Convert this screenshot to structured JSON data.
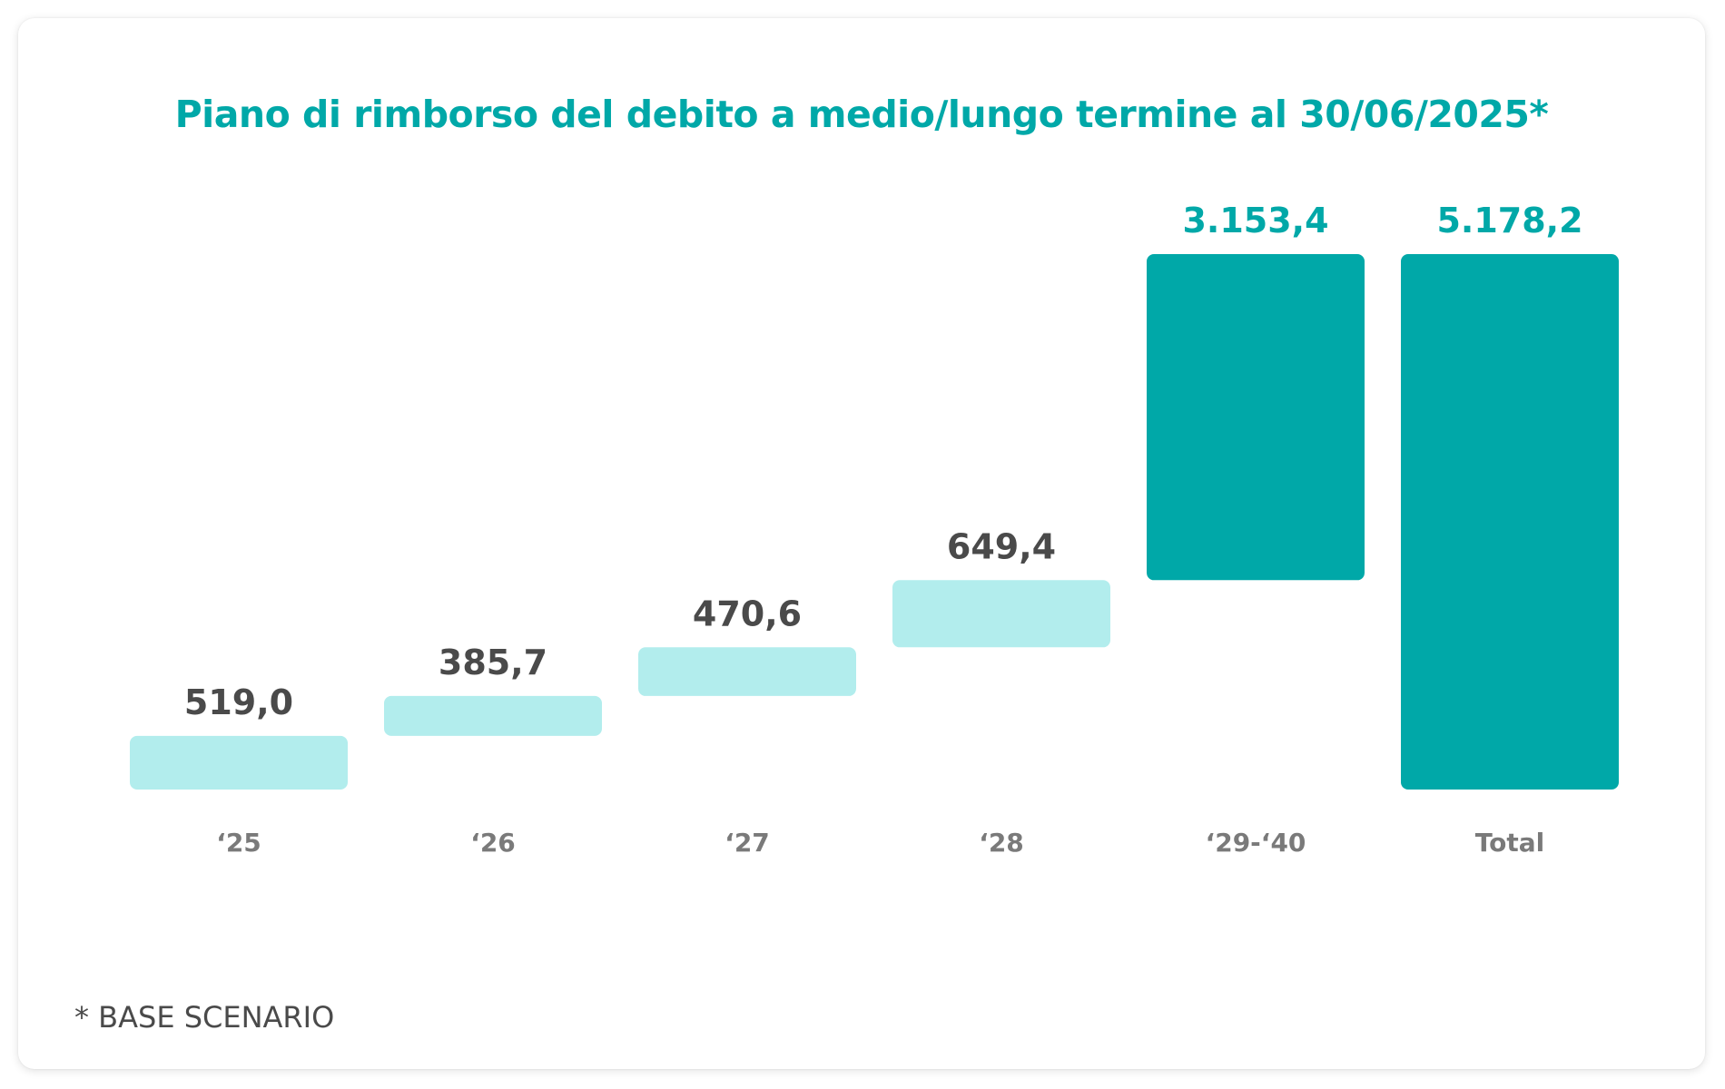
{
  "colors": {
    "increment_bar": "#b2eded",
    "total_bar": "#00a8a8",
    "increment_label": "#4a4a4a",
    "total_label": "#00a8a8",
    "axis_label": "#7a7a7a",
    "title": "#00a8a8"
  },
  "footnote": "* BASE SCENARIO",
  "chart_data": {
    "type": "bar",
    "subtype": "waterfall",
    "title": "Piano di rimborso del debito a medio/lungo termine al 30/06/2025*",
    "xlabel": "",
    "ylabel": "",
    "categories": [
      "‘25",
      "‘26",
      "‘27",
      "‘28",
      "‘29-‘40",
      "Total"
    ],
    "values": [
      519.0,
      385.7,
      470.6,
      649.4,
      3153.4,
      5178.2
    ],
    "value_labels": [
      "519,0",
      "385,7",
      "470,6",
      "649,4",
      "3.153,4",
      "5.178,2"
    ],
    "kinds": [
      "increment",
      "increment",
      "increment",
      "increment",
      "total",
      "total"
    ],
    "grid": false,
    "legend": "none"
  }
}
